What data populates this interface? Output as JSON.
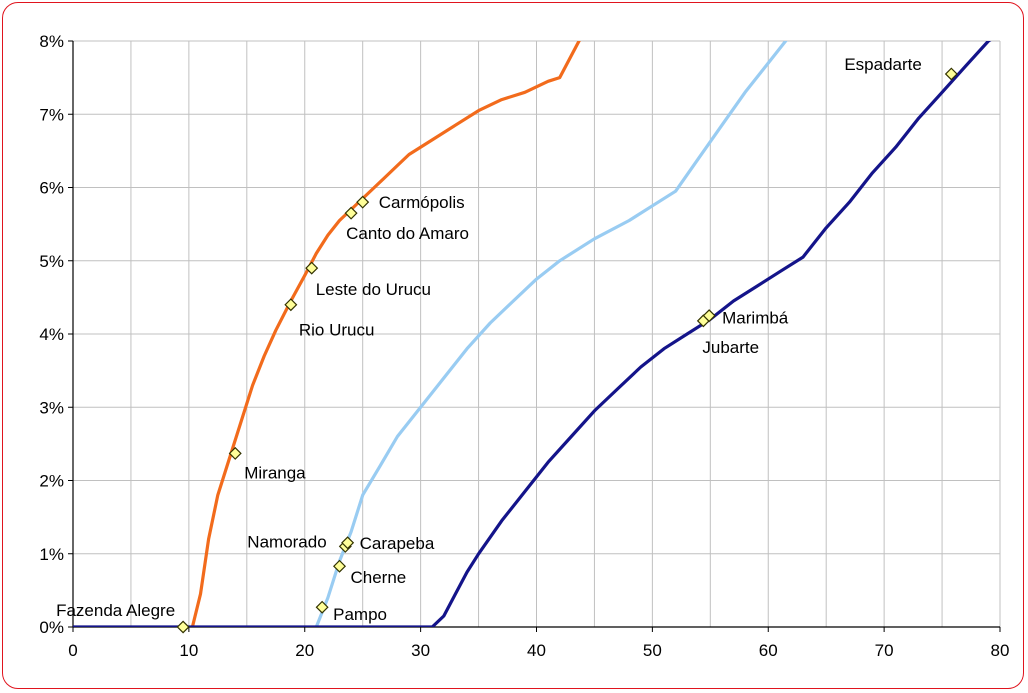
{
  "chart_data": {
    "type": "line",
    "title": "",
    "xlabel": "",
    "ylabel": "",
    "xlim": [
      0,
      80
    ],
    "ylim": [
      0,
      8
    ],
    "x_ticks": [
      "0",
      "10",
      "20",
      "30",
      "40",
      "50",
      "60",
      "70",
      "80"
    ],
    "y_ticks": [
      "0%",
      "1%",
      "2%",
      "3%",
      "4%",
      "5%",
      "6%",
      "7%",
      "8%"
    ],
    "grid": true,
    "legend": "none",
    "series": [
      {
        "color": "#f26b1c",
        "points": [
          [
            10.3,
            0
          ],
          [
            11,
            0.45
          ],
          [
            11.7,
            1.2
          ],
          [
            12.5,
            1.8
          ],
          [
            13.5,
            2.3
          ],
          [
            14.5,
            2.8
          ],
          [
            15.5,
            3.3
          ],
          [
            16.5,
            3.7
          ],
          [
            17.5,
            4.05
          ],
          [
            18.8,
            4.45
          ],
          [
            20,
            4.8
          ],
          [
            21,
            5.1
          ],
          [
            22,
            5.35
          ],
          [
            23,
            5.55
          ],
          [
            24,
            5.7
          ],
          [
            25,
            5.85
          ],
          [
            26,
            6.0
          ],
          [
            27,
            6.15
          ],
          [
            28,
            6.3
          ],
          [
            29,
            6.45
          ],
          [
            31,
            6.65
          ],
          [
            33,
            6.85
          ],
          [
            35,
            7.05
          ],
          [
            37,
            7.2
          ],
          [
            39,
            7.3
          ],
          [
            41,
            7.45
          ],
          [
            42,
            7.5
          ],
          [
            43,
            7.8
          ],
          [
            44,
            8.1
          ]
        ]
      },
      {
        "color": "#99ccf2",
        "points": [
          [
            21,
            0
          ],
          [
            22,
            0.4
          ],
          [
            23,
            0.9
          ],
          [
            24,
            1.3
          ],
          [
            25,
            1.8
          ],
          [
            26.5,
            2.2
          ],
          [
            28,
            2.6
          ],
          [
            30,
            3.0
          ],
          [
            32,
            3.4
          ],
          [
            34,
            3.8
          ],
          [
            36,
            4.15
          ],
          [
            38,
            4.45
          ],
          [
            40,
            4.75
          ],
          [
            42,
            5.0
          ],
          [
            45,
            5.3
          ],
          [
            48,
            5.55
          ],
          [
            50,
            5.75
          ],
          [
            52,
            5.95
          ],
          [
            54,
            6.4
          ],
          [
            56,
            6.85
          ],
          [
            58,
            7.3
          ],
          [
            60,
            7.7
          ],
          [
            62,
            8.1
          ]
        ]
      },
      {
        "color": "#14148a",
        "points": [
          [
            0,
            0
          ],
          [
            31,
            0
          ],
          [
            32,
            0.15
          ],
          [
            33,
            0.45
          ],
          [
            34,
            0.75
          ],
          [
            35,
            1.0
          ],
          [
            37,
            1.45
          ],
          [
            39,
            1.85
          ],
          [
            41,
            2.25
          ],
          [
            43,
            2.6
          ],
          [
            45,
            2.95
          ],
          [
            47,
            3.25
          ],
          [
            49,
            3.55
          ],
          [
            51,
            3.8
          ],
          [
            53,
            4.0
          ],
          [
            55,
            4.2
          ],
          [
            57,
            4.45
          ],
          [
            59,
            4.65
          ],
          [
            61,
            4.85
          ],
          [
            63,
            5.05
          ],
          [
            65,
            5.45
          ],
          [
            67,
            5.8
          ],
          [
            69,
            6.2
          ],
          [
            71,
            6.55
          ],
          [
            73,
            6.95
          ],
          [
            75,
            7.3
          ],
          [
            77,
            7.65
          ],
          [
            79,
            8.0
          ],
          [
            80,
            8.1
          ]
        ]
      }
    ],
    "labeled_points": [
      {
        "label": "Fazenda Alegre",
        "x": 9.5,
        "y": 0.0
      },
      {
        "label": "Miranga",
        "x": 14.0,
        "y": 2.37
      },
      {
        "label": "Rio Urucu",
        "x": 18.8,
        "y": 4.4
      },
      {
        "label": "Leste do Urucu",
        "x": 20.6,
        "y": 4.9
      },
      {
        "label": "Canto do Amaro",
        "x": 24.0,
        "y": 5.65
      },
      {
        "label": "Carmópolis",
        "x": 25.0,
        "y": 5.8
      },
      {
        "label": "Pampo",
        "x": 21.5,
        "y": 0.27
      },
      {
        "label": "Cherne",
        "x": 23.0,
        "y": 0.83
      },
      {
        "label": "Namorado",
        "x": 23.5,
        "y": 1.1
      },
      {
        "label": "Carapeba",
        "x": 23.7,
        "y": 1.15
      },
      {
        "label": "Jubarte",
        "x": 54.4,
        "y": 4.18
      },
      {
        "label": "Marimbá",
        "x": 54.9,
        "y": 4.25
      },
      {
        "label": "Espadarte",
        "x": 75.8,
        "y": 7.55
      }
    ]
  }
}
